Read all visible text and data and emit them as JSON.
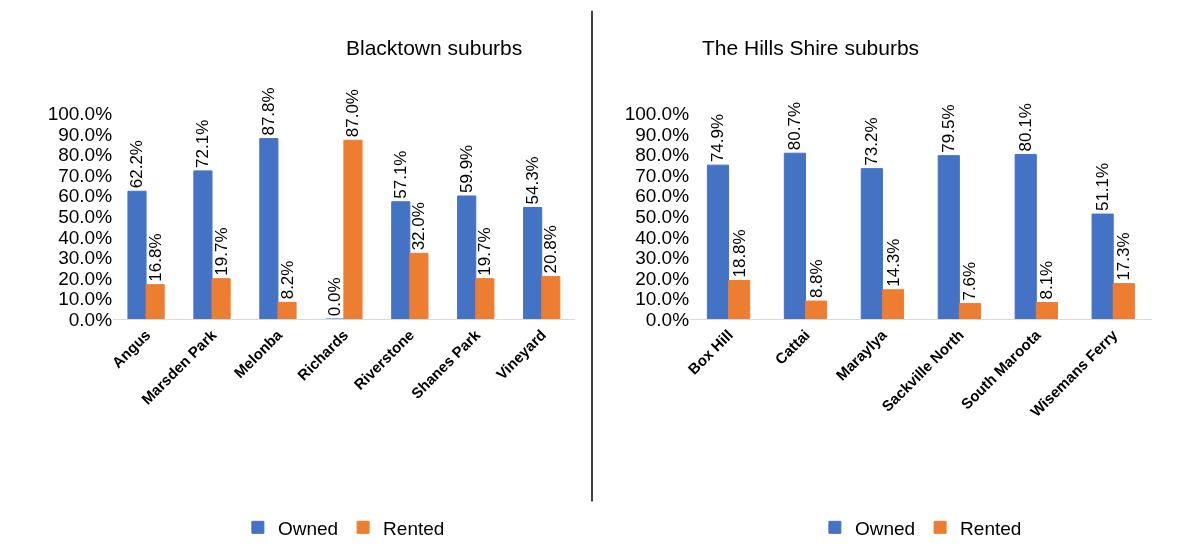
{
  "chart_data": [
    {
      "type": "bar",
      "title": "Blacktown suburbs",
      "categories": [
        "Angus",
        "Marsden Park",
        "Melonba",
        "Richards",
        "Riverstone",
        "Shanes Park",
        "Vineyard"
      ],
      "series": [
        {
          "name": "Owned",
          "color": "#4472c4",
          "values": [
            62.2,
            72.1,
            87.8,
            0.0,
            57.1,
            59.9,
            54.3
          ],
          "value_labels": [
            "62.2%",
            "72.1%",
            "87.8%",
            "0.0%",
            "57.1%",
            "59.9%",
            "54.3%"
          ]
        },
        {
          "name": "Rented",
          "color": "#ed7d31",
          "values": [
            16.8,
            19.7,
            8.2,
            87.0,
            32.0,
            19.7,
            20.8
          ],
          "value_labels": [
            "16.8%",
            "19.7%",
            "8.2%",
            "87.0%",
            "32.0%",
            "19.7%",
            "20.8%"
          ]
        }
      ],
      "ylim": [
        0,
        100
      ],
      "yticks": [
        {
          "value": 0,
          "label": "0.0%"
        },
        {
          "value": 10,
          "label": "10.0%"
        },
        {
          "value": 20,
          "label": "20.0%"
        },
        {
          "value": 30,
          "label": "30.0%"
        },
        {
          "value": 40,
          "label": "40.0%"
        },
        {
          "value": 50,
          "label": "50.0%"
        },
        {
          "value": 60,
          "label": "60.0%"
        },
        {
          "value": 70,
          "label": "70.0%"
        },
        {
          "value": 80,
          "label": "80.0%"
        },
        {
          "value": 90,
          "label": "90.0%"
        },
        {
          "value": 100,
          "label": "100.0%"
        }
      ],
      "grid": false,
      "legend": "bottom"
    },
    {
      "type": "bar",
      "title": "The Hills Shire suburbs",
      "categories": [
        "Box Hill",
        "Cattai",
        "Maraylya",
        "Sackville North",
        "South Maroota",
        "Wisemans Ferry"
      ],
      "series": [
        {
          "name": "Owned",
          "color": "#4472c4",
          "values": [
            74.9,
            80.7,
            73.2,
            79.5,
            80.1,
            51.1
          ],
          "value_labels": [
            "74.9%",
            "80.7%",
            "73.2%",
            "79.5%",
            "80.1%",
            "51.1%"
          ]
        },
        {
          "name": "Rented",
          "color": "#ed7d31",
          "values": [
            18.8,
            8.8,
            14.3,
            7.6,
            8.1,
            17.3
          ],
          "value_labels": [
            "18.8%",
            "8.8%",
            "14.3%",
            "7.6%",
            "8.1%",
            "17.3%"
          ]
        }
      ],
      "ylim": [
        0,
        100
      ],
      "yticks": [
        {
          "value": 0,
          "label": "0.0%"
        },
        {
          "value": 10,
          "label": "10.0%"
        },
        {
          "value": 20,
          "label": "20.0%"
        },
        {
          "value": 30,
          "label": "30.0%"
        },
        {
          "value": 40,
          "label": "40.0%"
        },
        {
          "value": 50,
          "label": "50.0%"
        },
        {
          "value": 60,
          "label": "60.0%"
        },
        {
          "value": 70,
          "label": "70.0%"
        },
        {
          "value": 80,
          "label": "80.0%"
        },
        {
          "value": 90,
          "label": "90.0%"
        },
        {
          "value": 100,
          "label": "100.0%"
        }
      ],
      "grid": false,
      "legend": "bottom"
    }
  ]
}
